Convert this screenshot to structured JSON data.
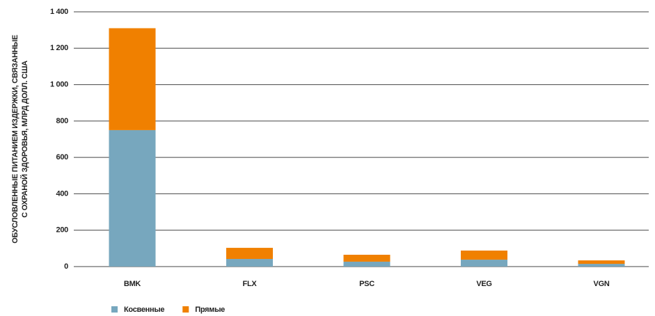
{
  "chart_data": {
    "type": "stacked_bar",
    "y_label_lines": [
      "ОБУСЛОВЛЕННЫЕ ПИТАНИЕМ ИЗДЕРЖКИ, СВЯЗАННЫЕ",
      "С ОХРАНОЙ ЗДОРОВЬЯ, МЛРД ДОЛЛ. США"
    ],
    "categories": [
      "BMK",
      "FLX",
      "PSC",
      "VEG",
      "VGN"
    ],
    "series": [
      {
        "name": "Косвенные",
        "color": "#77a7be",
        "values": [
          750,
          42,
          27,
          38,
          15
        ]
      },
      {
        "name": "Прямые",
        "color": "#f08000",
        "values": [
          560,
          61,
          38,
          50,
          19
        ]
      }
    ],
    "ylim": [
      0,
      1400
    ],
    "yticks": [
      0,
      200,
      400,
      600,
      800,
      {
        "value": 1000,
        "label": "1 000"
      },
      {
        "value": 1200,
        "label": "1 200"
      },
      {
        "value": 1400,
        "label": "1 400"
      }
    ],
    "grid": true,
    "legend": "bottom-left"
  }
}
